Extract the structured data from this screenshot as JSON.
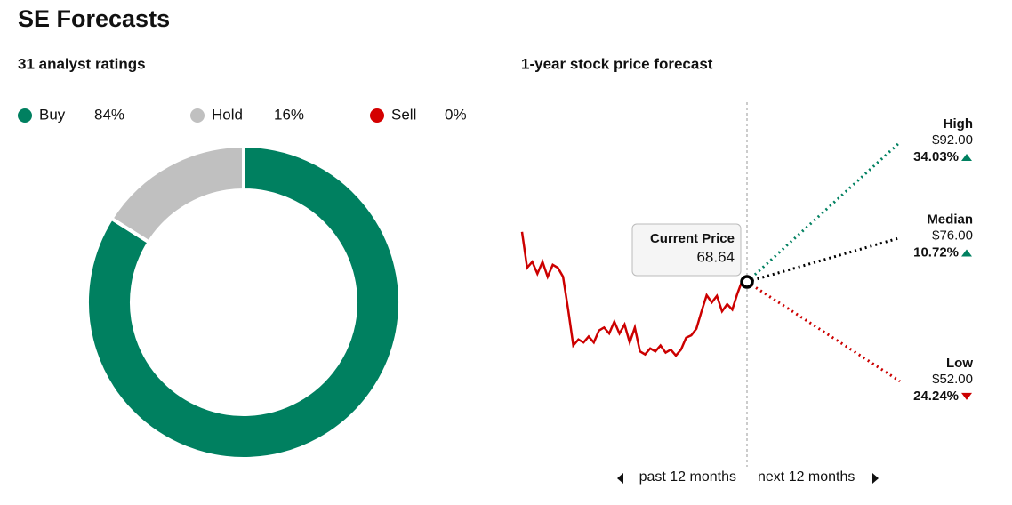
{
  "title": "SE Forecasts",
  "chart_data": [
    {
      "type": "donut",
      "title": "31 analyst ratings",
      "categories": [
        "Buy",
        "Hold",
        "Sell"
      ],
      "values": [
        84,
        16,
        0
      ],
      "value_labels": [
        "84%",
        "16%",
        "0%"
      ],
      "colors": [
        "#008060",
        "#c0c0c0",
        "#d40000"
      ]
    },
    {
      "type": "forecast",
      "title": "1-year stock price forecast",
      "values": [
        77,
        71,
        72,
        70,
        72,
        69.5,
        71.5,
        71,
        69.5,
        64,
        58,
        59,
        58.5,
        59.5,
        58.5,
        60.5,
        61,
        60,
        62,
        60,
        61.5,
        58.5,
        61,
        57,
        56.5,
        57.5,
        57,
        58,
        56.8,
        57.3,
        56.3,
        57.3,
        59.3,
        59.7,
        60.8,
        63.7,
        66.4,
        65.2,
        66.3,
        63.7,
        64.9,
        64,
        66.7,
        69
      ],
      "color": "#cc0000",
      "current": {
        "label": "Current Price",
        "value": 68.64
      },
      "targets": [
        {
          "name": "High",
          "value": 92,
          "value_label": "$92.00",
          "change": 34.03,
          "change_label": "34.03%",
          "direction": "up",
          "line_color": "#008060",
          "change_color": "#008060"
        },
        {
          "name": "Median",
          "value": 76,
          "value_label": "$76.00",
          "change": 10.72,
          "change_label": "10.72%",
          "direction": "up",
          "line_color": "#000000",
          "change_color": "#008060"
        },
        {
          "name": "Low",
          "value": 52,
          "value_label": "$52.00",
          "change": 24.24,
          "change_label": "24.24%",
          "direction": "down",
          "line_color": "#cc0000",
          "change_color": "#cc0000"
        }
      ],
      "x_labels": [
        "past 12 months",
        "next 12 months"
      ]
    }
  ]
}
